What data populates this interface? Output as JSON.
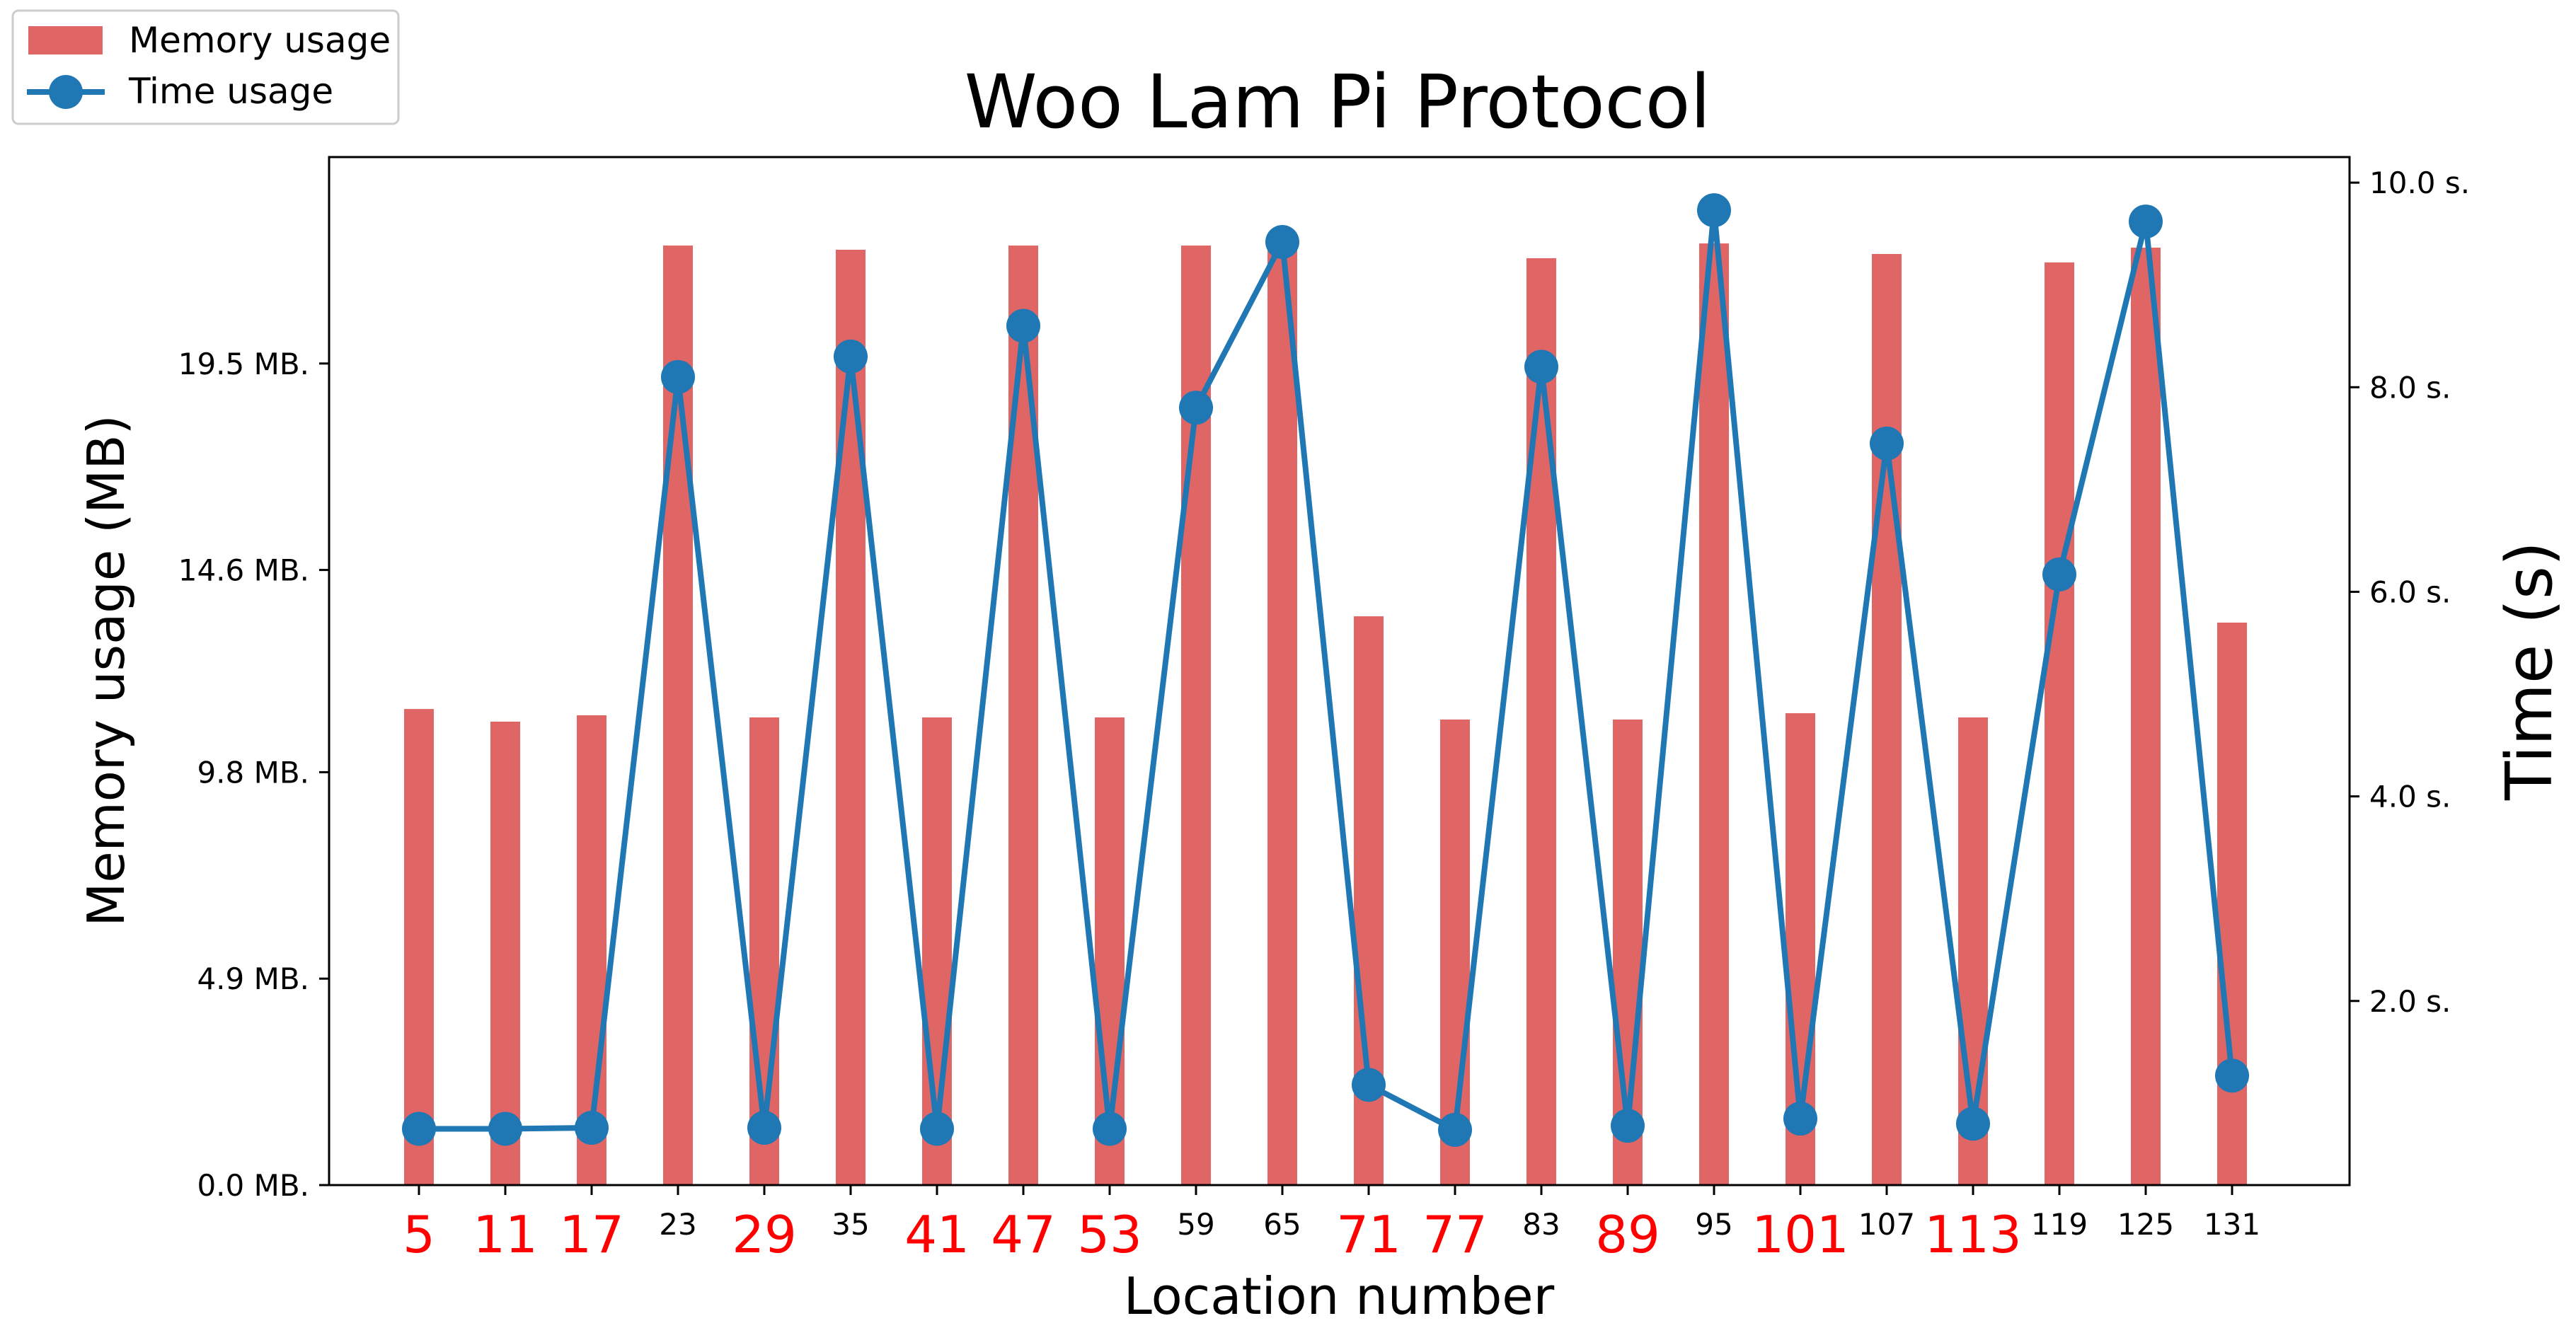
{
  "chart_data": {
    "type": "bar",
    "title": "Woo Lam Pi Protocol",
    "xlabel": "Location number",
    "ylabel": "Memory usage (MB)",
    "y2label": "Time (s)",
    "categories": [
      "5",
      "11",
      "17",
      "23",
      "29",
      "35",
      "41",
      "47",
      "53",
      "59",
      "65",
      "71",
      "77",
      "83",
      "89",
      "95",
      "101",
      "107",
      "113",
      "119",
      "125",
      "131"
    ],
    "highlight_categories": [
      "5",
      "11",
      "17",
      "29",
      "41",
      "47",
      "53",
      "71",
      "77",
      "89",
      "101",
      "113"
    ],
    "highlight_color": "#ff0000",
    "ylim": [
      0,
      24.4
    ],
    "y_ticks": [
      0.0,
      4.9,
      9.8,
      14.6,
      19.5
    ],
    "y_tick_labels": [
      "0.0 MB.",
      "4.9 MB.",
      "9.8 MB.",
      "14.6 MB.",
      "19.5 MB."
    ],
    "y2lim": [
      0.2,
      10.25
    ],
    "y2_ticks": [
      2.0,
      4.0,
      6.0,
      8.0,
      10.0
    ],
    "y2_tick_labels": [
      "2.0 s.",
      "4.0 s.",
      "6.0 s.",
      "8.0 s.",
      "10.0 s."
    ],
    "legend_placement": "top-left",
    "grid": false,
    "series": [
      {
        "name": "Memory usage",
        "kind": "bar",
        "axis": "left",
        "color": "#e06666",
        "values": [
          11.3,
          11.0,
          11.15,
          22.3,
          11.1,
          22.2,
          11.1,
          22.3,
          11.1,
          22.3,
          22.3,
          13.5,
          11.05,
          22.0,
          11.05,
          22.35,
          11.2,
          22.1,
          11.1,
          21.9,
          22.25,
          13.35
        ]
      },
      {
        "name": "Time usage",
        "kind": "line",
        "axis": "right",
        "color": "#1f77b4",
        "values": [
          0.75,
          0.75,
          0.76,
          8.1,
          0.76,
          8.3,
          0.75,
          8.6,
          0.75,
          7.8,
          9.42,
          1.18,
          0.74,
          8.2,
          0.78,
          9.73,
          0.85,
          7.45,
          0.8,
          6.17,
          9.62,
          1.27
        ]
      }
    ]
  }
}
